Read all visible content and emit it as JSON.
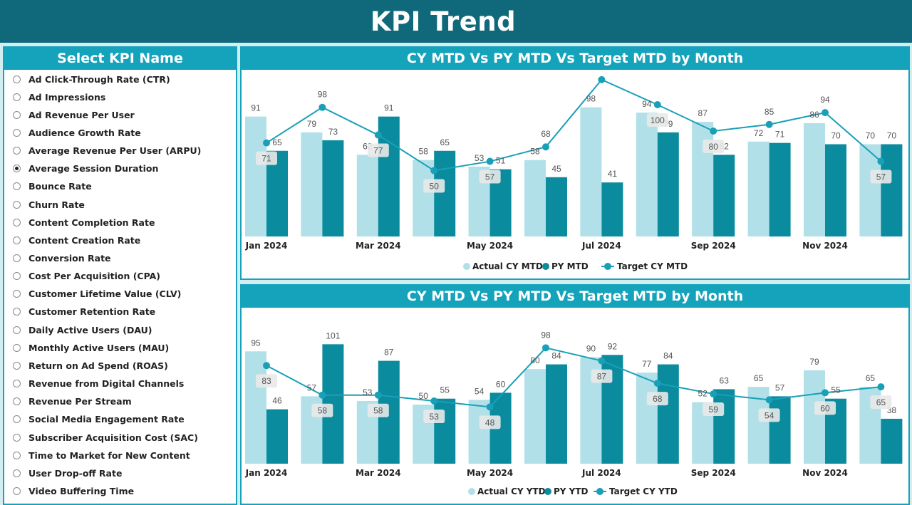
{
  "header": {
    "title": "KPI Trend"
  },
  "slicer": {
    "title": "Select KPI Name",
    "selected_index": 5,
    "items": [
      "Ad Click-Through Rate (CTR)",
      "Ad Impressions",
      "Ad Revenue Per User",
      "Audience Growth Rate",
      "Average Revenue Per User (ARPU)",
      "Average Session Duration",
      "Bounce Rate",
      "Churn Rate",
      "Content Completion Rate",
      "Content Creation Rate",
      "Conversion Rate",
      "Cost Per Acquisition (CPA)",
      "Customer Lifetime Value (CLV)",
      "Customer Retention Rate",
      "Daily Active Users (DAU)",
      "Monthly Active Users (MAU)",
      "Return on Ad Spend (ROAS)",
      "Revenue from Digital Channels",
      "Revenue Per Stream",
      "Social Media Engagement Rate",
      "Subscriber Acquisition Cost (SAC)",
      "Time to Market for New Content",
      "User Drop-off Rate",
      "Video Buffering Time"
    ]
  },
  "colors": {
    "header": "#10697a",
    "accent": "#14a3bb",
    "actual": "#b1e0e8",
    "py": "#0a8b9e",
    "target": "#19a0b8"
  },
  "chart_data": [
    {
      "type": "bar",
      "title": "CY MTD Vs PY MTD Vs Target MTD by Month",
      "categories": [
        "Jan 2024",
        "Feb 2024",
        "Mar 2024",
        "Apr 2024",
        "May 2024",
        "Jun 2024",
        "Jul 2024",
        "Aug 2024",
        "Sep 2024",
        "Oct 2024",
        "Nov 2024",
        "Dec 2024"
      ],
      "tick_labels": [
        "Jan 2024",
        "",
        "Mar 2024",
        "",
        "May 2024",
        "",
        "Jul 2024",
        "",
        "Sep 2024",
        "",
        "Nov 2024",
        ""
      ],
      "ylim": [
        0,
        125
      ],
      "series": [
        {
          "name": "Actual CY MTD",
          "kind": "bar",
          "values": [
            91,
            79,
            62,
            58,
            53,
            58,
            98,
            94,
            87,
            72,
            86,
            70
          ]
        },
        {
          "name": "PY MTD",
          "kind": "bar",
          "values": [
            65,
            73,
            91,
            65,
            51,
            45,
            41,
            79,
            62,
            71,
            70,
            70
          ]
        },
        {
          "name": "Target CY MTD",
          "kind": "line",
          "values": [
            71,
            98,
            77,
            50,
            57,
            68,
            119,
            100,
            80,
            85,
            94,
            57
          ]
        }
      ],
      "legend_position": "bottom",
      "grid": false
    },
    {
      "type": "bar",
      "title": "CY MTD Vs PY MTD Vs Target MTD by Month",
      "categories": [
        "Jan 2024",
        "Feb 2024",
        "Mar 2024",
        "Apr 2024",
        "May 2024",
        "Jun 2024",
        "Jul 2024",
        "Aug 2024",
        "Sep 2024",
        "Oct 2024",
        "Nov 2024",
        "Dec 2024"
      ],
      "tick_labels": [
        "Jan 2024",
        "",
        "Mar 2024",
        "",
        "May 2024",
        "",
        "Jul 2024",
        "",
        "Sep 2024",
        "",
        "Nov 2024",
        ""
      ],
      "ylim": [
        0,
        110
      ],
      "series": [
        {
          "name": "Actual CY YTD",
          "kind": "bar",
          "values": [
            95,
            57,
            53,
            50,
            54,
            80,
            90,
            77,
            52,
            65,
            79,
            65
          ]
        },
        {
          "name": "PY YTD",
          "kind": "bar",
          "values": [
            46,
            101,
            87,
            55,
            60,
            84,
            92,
            84,
            63,
            57,
            55,
            38
          ]
        },
        {
          "name": "Target CY YTD",
          "kind": "line",
          "values": [
            83,
            58,
            58,
            53,
            48,
            98,
            87,
            68,
            59,
            54,
            60,
            65
          ]
        }
      ],
      "legend_position": "bottom",
      "grid": false
    }
  ]
}
